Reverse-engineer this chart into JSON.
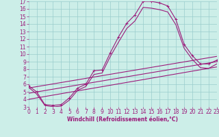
{
  "xlabel": "Windchill (Refroidissement éolien,°C)",
  "bg_color": "#cceee8",
  "line_color": "#9b1a7a",
  "grid_color": "#99cccc",
  "xmin": 0,
  "xmax": 23,
  "ymin": 3,
  "ymax": 17,
  "series": [
    {
      "x": [
        0,
        1,
        2,
        3,
        4,
        5,
        6,
        7,
        8,
        9,
        10,
        11,
        12,
        13,
        14,
        15,
        16,
        17,
        18,
        19,
        20,
        21,
        22,
        23
      ],
      "y": [
        5.8,
        5.0,
        3.3,
        3.2,
        3.3,
        4.2,
        5.5,
        6.0,
        7.8,
        7.9,
        10.2,
        12.3,
        14.1,
        15.2,
        17.0,
        17.0,
        16.8,
        16.4,
        14.6,
        11.3,
        9.8,
        8.7,
        8.7,
        9.2
      ],
      "marker": true
    },
    {
      "x": [
        0,
        1,
        2,
        3,
        4,
        5,
        6,
        7,
        8,
        9,
        10,
        11,
        12,
        13,
        14,
        15,
        16,
        17,
        18,
        19,
        20,
        21,
        22,
        23
      ],
      "y": [
        5.6,
        4.7,
        3.2,
        3.0,
        3.1,
        3.9,
        5.2,
        5.7,
        7.3,
        7.5,
        9.7,
        11.6,
        13.4,
        14.4,
        16.2,
        16.1,
        15.9,
        15.6,
        13.9,
        10.8,
        9.3,
        8.2,
        8.1,
        8.7
      ],
      "marker": false
    },
    {
      "x": [
        0,
        23
      ],
      "y": [
        5.5,
        9.7
      ],
      "marker": false
    },
    {
      "x": [
        0,
        23
      ],
      "y": [
        4.8,
        9.0
      ],
      "marker": false
    },
    {
      "x": [
        0,
        23
      ],
      "y": [
        4.0,
        8.3
      ],
      "marker": false
    }
  ],
  "xticks": [
    0,
    1,
    2,
    3,
    4,
    5,
    6,
    7,
    8,
    9,
    10,
    11,
    12,
    13,
    14,
    15,
    16,
    17,
    18,
    19,
    20,
    21,
    22,
    23
  ],
  "yticks": [
    3,
    4,
    5,
    6,
    7,
    8,
    9,
    10,
    11,
    12,
    13,
    14,
    15,
    16,
    17
  ],
  "xlabel_fontsize": 5.5,
  "tick_fontsize": 5.5,
  "linewidth": 0.8,
  "markersize": 3.0
}
